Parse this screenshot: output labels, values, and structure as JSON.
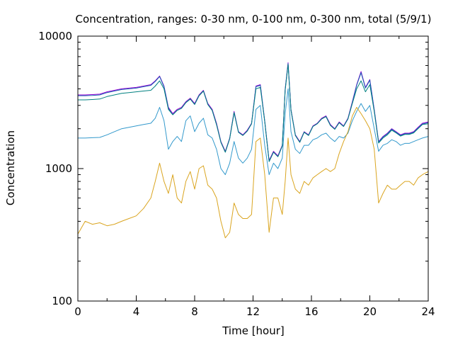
{
  "chart_data": {
    "type": "line",
    "title": "Concentration, ranges: 0-30 nm, 0-100 nm, 0-300 nm, total (5/9/1)",
    "xlabel": "Time [hour]",
    "ylabel": "Concentration",
    "xlim": [
      0,
      24
    ],
    "ylim": [
      100,
      10000
    ],
    "y_scale": "log",
    "grid": false,
    "legend": "none",
    "x_ticks": [
      "0",
      "4",
      "8",
      "12",
      "16",
      "20",
      "24"
    ],
    "y_ticks": [
      "100",
      "1000",
      "10000"
    ],
    "x": [
      0,
      0.5,
      1,
      1.5,
      2,
      2.5,
      3,
      3.5,
      4,
      4.5,
      5,
      5.3,
      5.6,
      5.9,
      6.2,
      6.5,
      6.8,
      7.1,
      7.4,
      7.7,
      8,
      8.3,
      8.6,
      8.9,
      9.2,
      9.5,
      9.8,
      10.1,
      10.4,
      10.7,
      11,
      11.3,
      11.6,
      11.9,
      12.2,
      12.5,
      12.8,
      13.1,
      13.4,
      13.7,
      14,
      14.2,
      14.4,
      14.6,
      14.9,
      15.2,
      15.5,
      15.8,
      16.1,
      16.4,
      16.7,
      17,
      17.3,
      17.6,
      17.9,
      18.2,
      18.5,
      18.8,
      19.1,
      19.4,
      19.7,
      20,
      20.3,
      20.6,
      20.9,
      21.2,
      21.5,
      21.8,
      22.1,
      22.4,
      22.7,
      23,
      23.3,
      23.6,
      24
    ],
    "series": [
      {
        "color": "#9400d3",
        "values": [
          3600,
          3600,
          3620,
          3650,
          3800,
          3900,
          4000,
          4050,
          4100,
          4200,
          4300,
          4600,
          5000,
          4200,
          2900,
          2600,
          2800,
          2900,
          3200,
          3400,
          3100,
          3600,
          3900,
          3100,
          2800,
          2200,
          1600,
          1350,
          1700,
          2700,
          1900,
          1800,
          1950,
          2200,
          4200,
          4300,
          2300,
          1150,
          1350,
          1250,
          1500,
          4000,
          6300,
          2800,
          1800,
          1600,
          1900,
          1800,
          2100,
          2200,
          2400,
          2500,
          2150,
          2000,
          2250,
          2100,
          2400,
          3200,
          4300,
          5400,
          4100,
          4700,
          2800,
          1600,
          1750,
          1850,
          2000,
          1900,
          1800,
          1850,
          1850,
          1900,
          2050,
          2200,
          2250
        ]
      },
      {
        "color": "#1a5fb4",
        "values": [
          3550,
          3550,
          3570,
          3600,
          3750,
          3850,
          3950,
          4000,
          4050,
          4150,
          4250,
          4550,
          4950,
          4150,
          2850,
          2550,
          2750,
          2850,
          3150,
          3350,
          3050,
          3550,
          3850,
          3050,
          2750,
          2150,
          1580,
          1330,
          1680,
          2650,
          1880,
          1780,
          1920,
          2180,
          4150,
          4250,
          2270,
          1130,
          1330,
          1230,
          1480,
          3950,
          6200,
          2760,
          1780,
          1580,
          1880,
          1780,
          2080,
          2180,
          2370,
          2470,
          2120,
          1980,
          2220,
          2080,
          2370,
          3150,
          4250,
          5300,
          4050,
          4650,
          2760,
          1580,
          1730,
          1830,
          1980,
          1880,
          1780,
          1830,
          1830,
          1880,
          2020,
          2170,
          2220
        ]
      },
      {
        "color": "#008080",
        "values": [
          3300,
          3300,
          3320,
          3350,
          3500,
          3600,
          3700,
          3750,
          3800,
          3850,
          3900,
          4200,
          4600,
          4000,
          2800,
          2550,
          2750,
          2850,
          3150,
          3350,
          3050,
          3550,
          3850,
          3050,
          2750,
          2150,
          1580,
          1330,
          1680,
          2650,
          1880,
          1780,
          1920,
          2180,
          4000,
          4100,
          2270,
          1130,
          1330,
          1230,
          1480,
          3900,
          6100,
          2760,
          1780,
          1580,
          1880,
          1780,
          2080,
          2180,
          2370,
          2470,
          2120,
          1980,
          2220,
          2080,
          2370,
          3100,
          4000,
          4600,
          3800,
          4300,
          2700,
          1560,
          1700,
          1800,
          1950,
          1860,
          1760,
          1810,
          1810,
          1860,
          2000,
          2150,
          2180
        ]
      },
      {
        "color": "#3399cc",
        "values": [
          1700,
          1700,
          1710,
          1720,
          1800,
          1900,
          2000,
          2050,
          2100,
          2150,
          2200,
          2400,
          2900,
          2300,
          1400,
          1600,
          1750,
          1600,
          2300,
          2500,
          1900,
          2200,
          2400,
          1800,
          1700,
          1400,
          1000,
          900,
          1100,
          1600,
          1200,
          1100,
          1200,
          1400,
          2800,
          3000,
          1500,
          900,
          1100,
          1000,
          1200,
          2600,
          4000,
          1900,
          1400,
          1300,
          1500,
          1500,
          1650,
          1700,
          1800,
          1850,
          1700,
          1600,
          1750,
          1700,
          1850,
          2300,
          2700,
          3100,
          2700,
          3000,
          2000,
          1350,
          1500,
          1550,
          1650,
          1600,
          1500,
          1550,
          1550,
          1600,
          1650,
          1700,
          1750
        ]
      },
      {
        "color": "#daa520",
        "values": [
          320,
          400,
          380,
          390,
          370,
          380,
          400,
          420,
          440,
          500,
          600,
          800,
          1100,
          800,
          650,
          900,
          600,
          550,
          800,
          950,
          700,
          1000,
          1050,
          750,
          700,
          600,
          400,
          300,
          330,
          550,
          450,
          420,
          420,
          450,
          1600,
          1700,
          900,
          330,
          600,
          600,
          450,
          800,
          1700,
          900,
          700,
          650,
          800,
          750,
          850,
          900,
          950,
          1000,
          950,
          1000,
          1300,
          1600,
          1900,
          2500,
          2900,
          2600,
          2300,
          2000,
          1400,
          550,
          650,
          750,
          700,
          700,
          750,
          800,
          800,
          750,
          850,
          900,
          950
        ]
      }
    ]
  }
}
